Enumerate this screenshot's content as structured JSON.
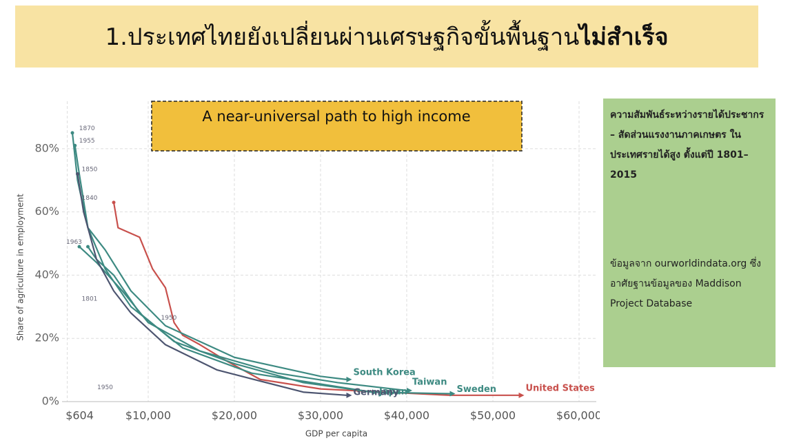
{
  "header": {
    "title": "1.ประเทศไทยยังเปลี่ยนผ่านเศรษฐกิจขั้นพื้นฐาน",
    "title_emphasis": "ไม่สำเร็จ"
  },
  "chart_data": {
    "type": "line",
    "annotation_box": "A near-universal path to high income",
    "x_label": "GDP per capita",
    "y_label": "Share of agriculture in employment",
    "xlim": [
      0,
      62000
    ],
    "ylim": [
      0,
      95
    ],
    "xticks": [
      {
        "value": 604,
        "label": "$604"
      },
      {
        "value": 10000,
        "label": "$10,000"
      },
      {
        "value": 20000,
        "label": "$20,000"
      },
      {
        "value": 30000,
        "label": "$30,000"
      },
      {
        "value": 40000,
        "label": "$40,000"
      },
      {
        "value": 50000,
        "label": "$50,000"
      },
      {
        "value": 60000,
        "label": "$60,000"
      }
    ],
    "yticks": [
      {
        "value": 0,
        "label": "0%"
      },
      {
        "value": 20,
        "label": "20%"
      },
      {
        "value": 40,
        "label": "40%"
      },
      {
        "value": 60,
        "label": "60%"
      },
      {
        "value": 80,
        "label": "80%"
      }
    ],
    "grid": true,
    "series": [
      {
        "name": "United States",
        "color": "#c8504c",
        "x": [
          6000,
          6500,
          9000,
          10500,
          12000,
          13000,
          14000,
          16000,
          19000,
          23000,
          30000,
          45000,
          53000
        ],
        "values": [
          63,
          55,
          52,
          42,
          36,
          25,
          21,
          18,
          13,
          7,
          4,
          2,
          2
        ]
      },
      {
        "name": "South Korea",
        "color": "#3d8a82",
        "x": [
          1500,
          2000,
          3000,
          5000,
          8000,
          12000,
          20000,
          30000,
          33000
        ],
        "values": [
          81,
          72,
          55,
          48,
          35,
          24,
          14,
          8,
          7
        ]
      },
      {
        "name": "Japan",
        "color": "#3d8a82",
        "x": [
          3000,
          4000,
          6000,
          9000,
          13000,
          20000,
          28000,
          36000
        ],
        "values": [
          49,
          45,
          40,
          28,
          19,
          12,
          6,
          3
        ]
      },
      {
        "name": "Taiwan",
        "color": "#3d8a82",
        "x": [
          2000,
          4000,
          7000,
          10000,
          16000,
          25000,
          32000,
          40000
        ],
        "values": [
          49,
          44,
          35,
          25,
          16,
          9,
          6,
          3.5
        ]
      },
      {
        "name": "Sweden",
        "color": "#3d8a82",
        "x": [
          1200,
          1800,
          3000,
          5000,
          8000,
          14000,
          22000,
          36000,
          45000
        ],
        "values": [
          85,
          70,
          55,
          42,
          30,
          17,
          9,
          3,
          2.5
        ]
      },
      {
        "name": "Germany",
        "color": "#4d5570",
        "x": [
          1800,
          2500,
          4000,
          6000,
          8000,
          12000,
          18000,
          28000,
          33000
        ],
        "values": [
          72,
          60,
          45,
          35,
          28,
          18,
          10,
          3,
          2
        ]
      }
    ],
    "annotations": [
      {
        "text": "1870",
        "x": 1500,
        "y": 86
      },
      {
        "text": "1955",
        "x": 1500,
        "y": 82
      },
      {
        "text": "1850",
        "x": 1800,
        "y": 73
      },
      {
        "text": "1840",
        "x": 1800,
        "y": 64
      },
      {
        "text": "1963",
        "x": 0,
        "y": 50
      },
      {
        "text": "1801",
        "x": 1800,
        "y": 32
      },
      {
        "text": "1950",
        "x": 11000,
        "y": 26
      },
      {
        "text": "1950",
        "x": 3600,
        "y": 4
      }
    ]
  },
  "side_note": {
    "description": "ความสัมพันธ์ระหว่างรายได้ประชากร – สัดส่วนแรงงานภาคเกษตร ในประเทศรายได้สูง ตั้งแต่ปี 1801–2015",
    "source": "ข้อมูลจาก ourworldindata.org ซึ่งอาศัยฐานข้อมูลของ Maddison Project Database"
  }
}
